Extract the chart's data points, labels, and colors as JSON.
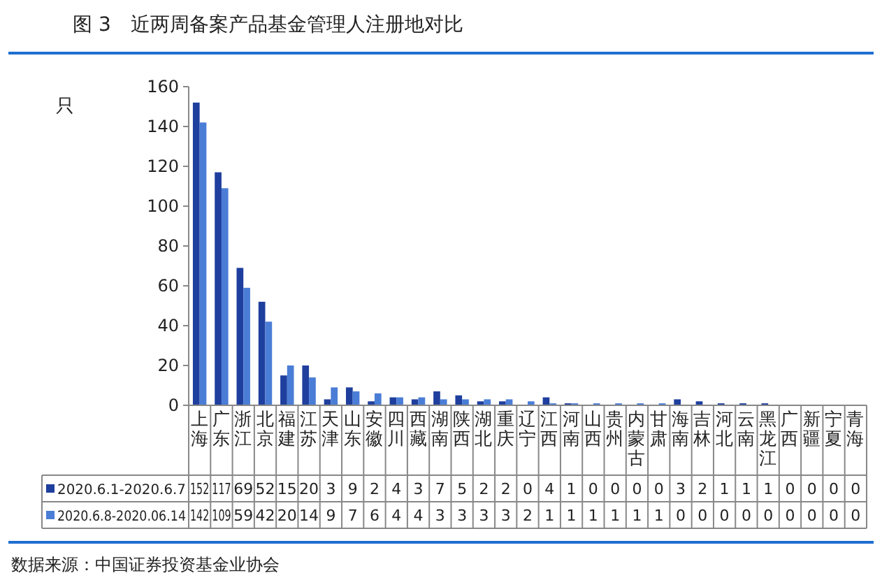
{
  "chart_data": {
    "type": "bar",
    "title": "图 3　近两周备案产品基金管理人注册地对比",
    "ylabel": "只",
    "categories": [
      "上海",
      "广东",
      "浙江",
      "北京",
      "福建",
      "江苏",
      "天津",
      "山东",
      "安徽",
      "四川",
      "西藏",
      "湖南",
      "陕西",
      "湖北",
      "重庆",
      "辽宁",
      "江西",
      "河南",
      "山西",
      "贵州",
      "内蒙古",
      "甘肃",
      "海南",
      "吉林",
      "河北",
      "云南",
      "黑龙江",
      "广西",
      "新疆",
      "宁夏",
      "青海"
    ],
    "series": [
      {
        "name": "2020.6.1-2020.6.7",
        "color": "#1f3f9e",
        "values": [
          152,
          117,
          69,
          52,
          15,
          20,
          3,
          9,
          2,
          4,
          3,
          7,
          5,
          2,
          2,
          0,
          4,
          1,
          0,
          0,
          0,
          0,
          3,
          2,
          1,
          1,
          1,
          0,
          0,
          0,
          0
        ]
      },
      {
        "name": "2020.6.8-2020.06.14",
        "color": "#4a7dd6",
        "values": [
          142,
          109,
          59,
          42,
          20,
          14,
          9,
          7,
          6,
          4,
          4,
          3,
          3,
          3,
          3,
          2,
          1,
          1,
          1,
          1,
          1,
          1,
          0,
          0,
          0,
          0,
          0,
          0,
          0,
          0,
          0
        ]
      }
    ],
    "ylim": [
      0,
      160
    ],
    "yticks": [
      0,
      20,
      40,
      60,
      80,
      100,
      120,
      140,
      160
    ],
    "data_labels": true,
    "legend": "bottom",
    "grid": false,
    "annotations": [
      "数据来源：中国证券投资基金业协会"
    ]
  }
}
